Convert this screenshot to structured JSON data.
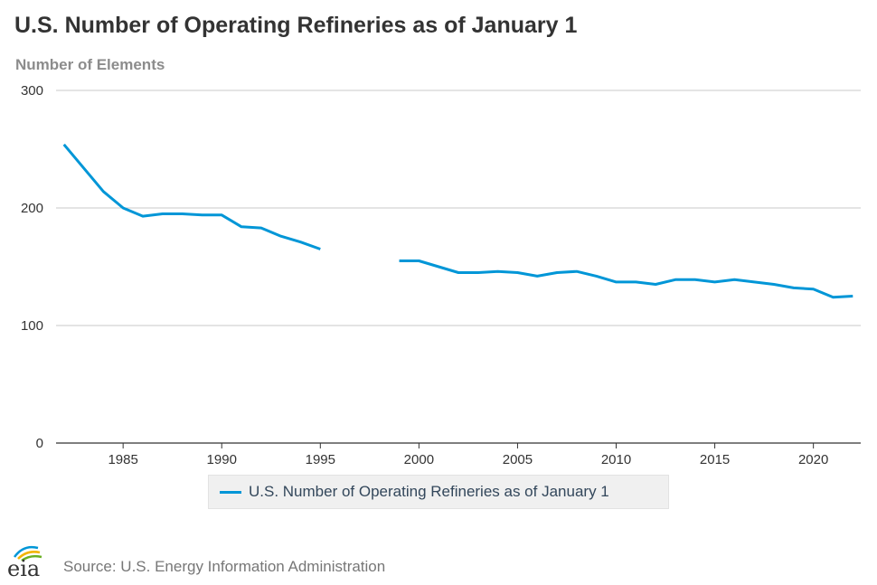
{
  "header": {
    "title": "U.S. Number of Operating Refineries as of January 1",
    "y_axis_title": "Number of Elements"
  },
  "legend": {
    "label": "U.S. Number of Operating Refineries as of January 1"
  },
  "footer": {
    "logo_text": "eia",
    "source": "Source: U.S. Energy Information Administration"
  },
  "colors": {
    "series": "#0096d7",
    "grid": "#c8c8c8",
    "axis": "#333333"
  },
  "chart_data": {
    "type": "line",
    "title": "U.S. Number of Operating Refineries as of January 1",
    "ylabel": "Number of Elements",
    "xlabel": "",
    "xlim": [
      1981.6,
      2022.4
    ],
    "ylim": [
      0,
      300
    ],
    "x_ticks": [
      1985,
      1990,
      1995,
      2000,
      2005,
      2010,
      2015,
      2020
    ],
    "y_ticks": [
      0,
      100,
      200,
      300
    ],
    "grid": "horizontal",
    "legend_position": "bottom-center",
    "series": [
      {
        "name": "U.S. Number of Operating Refineries as of January 1",
        "points": [
          [
            1982,
            254
          ],
          [
            1983,
            234
          ],
          [
            1984,
            214
          ],
          [
            1985,
            200
          ],
          [
            1986,
            193
          ],
          [
            1987,
            195
          ],
          [
            1988,
            195
          ],
          [
            1989,
            194
          ],
          [
            1990,
            194
          ],
          [
            1991,
            184
          ],
          [
            1992,
            183
          ],
          [
            1993,
            176
          ],
          [
            1994,
            171
          ],
          [
            1995,
            165
          ],
          [
            1999,
            155
          ],
          [
            2000,
            155
          ],
          [
            2001,
            150
          ],
          [
            2002,
            145
          ],
          [
            2003,
            145
          ],
          [
            2004,
            146
          ],
          [
            2005,
            145
          ],
          [
            2006,
            142
          ],
          [
            2007,
            145
          ],
          [
            2008,
            146
          ],
          [
            2009,
            142
          ],
          [
            2010,
            137
          ],
          [
            2011,
            137
          ],
          [
            2012,
            135
          ],
          [
            2013,
            139
          ],
          [
            2014,
            139
          ],
          [
            2015,
            137
          ],
          [
            2016,
            139
          ],
          [
            2017,
            137
          ],
          [
            2018,
            135
          ],
          [
            2019,
            132
          ],
          [
            2020,
            131
          ],
          [
            2021,
            124
          ],
          [
            2022,
            125
          ]
        ]
      }
    ]
  }
}
